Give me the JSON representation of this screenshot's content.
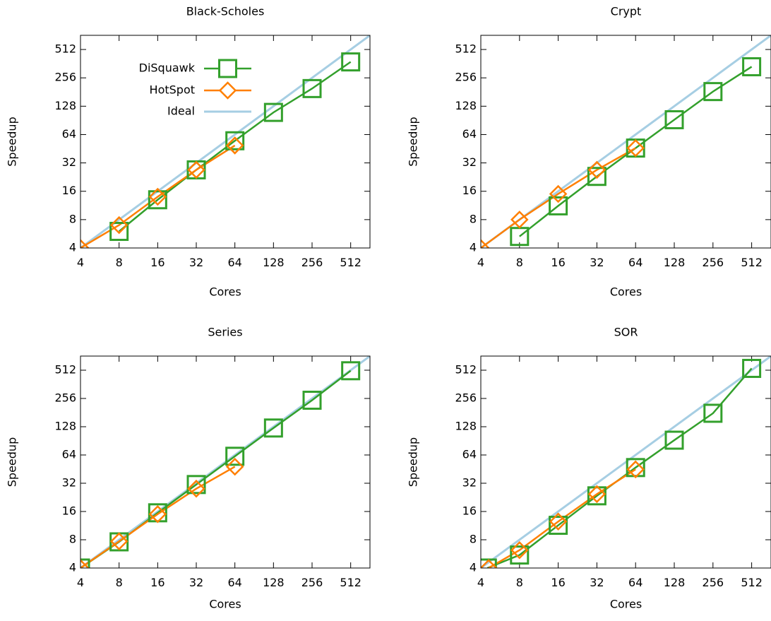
{
  "chart_data": [
    {
      "type": "line",
      "title": "Black-Scholes",
      "xlabel": "Cores",
      "ylabel": "Speedup",
      "x_scale": "log2",
      "y_scale": "log2",
      "xlim": [
        4,
        724
      ],
      "ylim": [
        4,
        724
      ],
      "x_ticks": [
        "4",
        "8",
        "16",
        "32",
        "64",
        "128",
        "256",
        "512"
      ],
      "y_ticks": [
        "4",
        "8",
        "16",
        "32",
        "64",
        "128",
        "256",
        "512"
      ],
      "grid": false,
      "legend_position": "top-left",
      "series": [
        {
          "name": "DiSquawk",
          "color": "#33a02c",
          "marker": "square",
          "x": [
            8,
            16,
            32,
            64,
            128,
            256,
            512
          ],
          "y": [
            6,
            13,
            27,
            55,
            110,
            197,
            378
          ]
        },
        {
          "name": "HotSpot",
          "color": "#ff7f00",
          "marker": "diamond",
          "x": [
            4,
            8,
            16,
            32,
            64
          ],
          "y": [
            4,
            7,
            14,
            27,
            49
          ]
        },
        {
          "name": "Ideal",
          "color": "#a6cee3",
          "marker": "none",
          "x": [
            4,
            724
          ],
          "y": [
            4,
            724
          ]
        }
      ]
    },
    {
      "type": "line",
      "title": "Crypt",
      "xlabel": "Cores",
      "ylabel": "Speedup",
      "x_scale": "log2",
      "y_scale": "log2",
      "xlim": [
        4,
        724
      ],
      "ylim": [
        4,
        724
      ],
      "x_ticks": [
        "4",
        "8",
        "16",
        "32",
        "64",
        "128",
        "256",
        "512"
      ],
      "y_ticks": [
        "4",
        "8",
        "16",
        "32",
        "64",
        "128",
        "256",
        "512"
      ],
      "grid": false,
      "series": [
        {
          "name": "DiSquawk",
          "color": "#33a02c",
          "marker": "square",
          "x": [
            8,
            16,
            32,
            64,
            128,
            256,
            512
          ],
          "y": [
            5.3,
            11.2,
            23,
            46,
            92,
            183,
            336
          ]
        },
        {
          "name": "HotSpot",
          "color": "#ff7f00",
          "marker": "diamond",
          "x": [
            4,
            8,
            16,
            32,
            64
          ],
          "y": [
            4,
            8,
            15,
            27,
            46
          ]
        },
        {
          "name": "Ideal",
          "color": "#a6cee3",
          "marker": "none",
          "x": [
            4,
            724
          ],
          "y": [
            4,
            724
          ]
        }
      ]
    },
    {
      "type": "line",
      "title": "Series",
      "xlabel": "Cores",
      "ylabel": "Speedup",
      "x_scale": "log2",
      "y_scale": "log2",
      "xlim": [
        4,
        724
      ],
      "ylim": [
        4,
        724
      ],
      "x_ticks": [
        "4",
        "8",
        "16",
        "32",
        "64",
        "128",
        "256",
        "512"
      ],
      "y_ticks": [
        "4",
        "8",
        "16",
        "32",
        "64",
        "128",
        "256",
        "512"
      ],
      "grid": false,
      "series": [
        {
          "name": "DiSquawk",
          "color": "#33a02c",
          "marker": "square",
          "x": [
            4,
            8,
            16,
            32,
            64,
            128,
            256,
            512
          ],
          "y": [
            4,
            7.6,
            15.5,
            31,
            62,
            124,
            245,
            505
          ]
        },
        {
          "name": "HotSpot",
          "color": "#ff7f00",
          "marker": "diamond",
          "x": [
            4,
            8,
            16,
            32,
            64
          ],
          "y": [
            4,
            7.7,
            15,
            28,
            48
          ]
        },
        {
          "name": "Ideal",
          "color": "#a6cee3",
          "marker": "none",
          "x": [
            4,
            724
          ],
          "y": [
            4,
            724
          ]
        }
      ]
    },
    {
      "type": "line",
      "title": "SOR",
      "xlabel": "Cores",
      "ylabel": "Speedup",
      "x_scale": "log2",
      "y_scale": "log2",
      "xlim": [
        4,
        724
      ],
      "ylim": [
        4,
        724
      ],
      "x_ticks": [
        "4",
        "8",
        "16",
        "32",
        "64",
        "128",
        "256",
        "512"
      ],
      "y_ticks": [
        "4",
        "8",
        "16",
        "32",
        "64",
        "128",
        "256",
        "512"
      ],
      "grid": false,
      "series": [
        {
          "name": "DiSquawk",
          "color": "#33a02c",
          "marker": "square",
          "x": [
            4.5,
            8,
            16,
            32,
            64,
            128,
            256,
            512
          ],
          "y": [
            4,
            5.5,
            11.4,
            23.5,
            47,
            92,
            178,
            535
          ]
        },
        {
          "name": "HotSpot",
          "color": "#ff7f00",
          "marker": "diamond",
          "x": [
            4.6,
            8,
            16,
            32,
            64
          ],
          "y": [
            4,
            6.2,
            12.5,
            24.5,
            45
          ]
        },
        {
          "name": "Ideal",
          "color": "#a6cee3",
          "marker": "none",
          "x": [
            4,
            724
          ],
          "y": [
            4,
            724
          ]
        }
      ]
    }
  ]
}
